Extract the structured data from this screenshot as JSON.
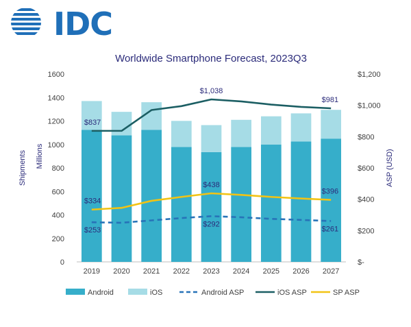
{
  "brand": {
    "logo_text": "IDC",
    "logo_color": "#1f6fb8",
    "icon": "idc-globe-icon"
  },
  "chart_data": {
    "type": "bar",
    "title": "Worldwide Smartphone Forecast, 2023Q3",
    "stacked": true,
    "categories": [
      "2019",
      "2020",
      "2021",
      "2022",
      "2023",
      "2024",
      "2025",
      "2026",
      "2027"
    ],
    "y_left": {
      "label": "Shipments",
      "unit_label": "Millions",
      "ylim": [
        0,
        1600
      ],
      "ticks": [
        "0",
        "200",
        "400",
        "600",
        "800",
        "1000",
        "1200",
        "1400",
        "1600"
      ]
    },
    "y_right": {
      "label": "ASP (USD)",
      "ylim": [
        0,
        1200
      ],
      "ticks": [
        "$-",
        "$200",
        "$400",
        "$600",
        "$800",
        "$1,000",
        "$1,200"
      ]
    },
    "series": [
      {
        "name": "Android",
        "kind": "bar",
        "axis": "left",
        "color": "#36aeca",
        "values": [
          1125,
          1078,
          1125,
          978,
          935,
          978,
          1000,
          1025,
          1050
        ]
      },
      {
        "name": "iOS",
        "kind": "bar",
        "axis": "left",
        "color": "#a6dce6",
        "values": [
          245,
          200,
          235,
          223,
          230,
          232,
          240,
          240,
          245
        ]
      },
      {
        "name": "Android ASP",
        "kind": "line",
        "dashed": true,
        "axis": "right",
        "color": "#2773b8",
        "values": [
          253,
          250,
          265,
          280,
          292,
          285,
          275,
          268,
          261
        ]
      },
      {
        "name": "iOS ASP",
        "kind": "line",
        "axis": "right",
        "color": "#1b5e63",
        "values": [
          837,
          837,
          970,
          995,
          1038,
          1025,
          1005,
          990,
          981
        ]
      },
      {
        "name": "SP ASP",
        "kind": "line",
        "axis": "right",
        "color": "#f2c314",
        "values": [
          334,
          345,
          390,
          415,
          438,
          428,
          415,
          405,
          396
        ]
      }
    ],
    "data_labels": [
      {
        "series": "iOS ASP",
        "index": 0,
        "text": "$837"
      },
      {
        "series": "iOS ASP",
        "index": 4,
        "text": "$1,038"
      },
      {
        "series": "iOS ASP",
        "index": 8,
        "text": "$981"
      },
      {
        "series": "SP ASP",
        "index": 0,
        "text": "$334"
      },
      {
        "series": "SP ASP",
        "index": 4,
        "text": "$438"
      },
      {
        "series": "SP ASP",
        "index": 8,
        "text": "$396"
      },
      {
        "series": "Android ASP",
        "index": 0,
        "text": "$253"
      },
      {
        "series": "Android ASP",
        "index": 4,
        "text": "$292"
      },
      {
        "series": "Android ASP",
        "index": 8,
        "text": "$261"
      }
    ],
    "grid": false,
    "legend": "bottom"
  }
}
